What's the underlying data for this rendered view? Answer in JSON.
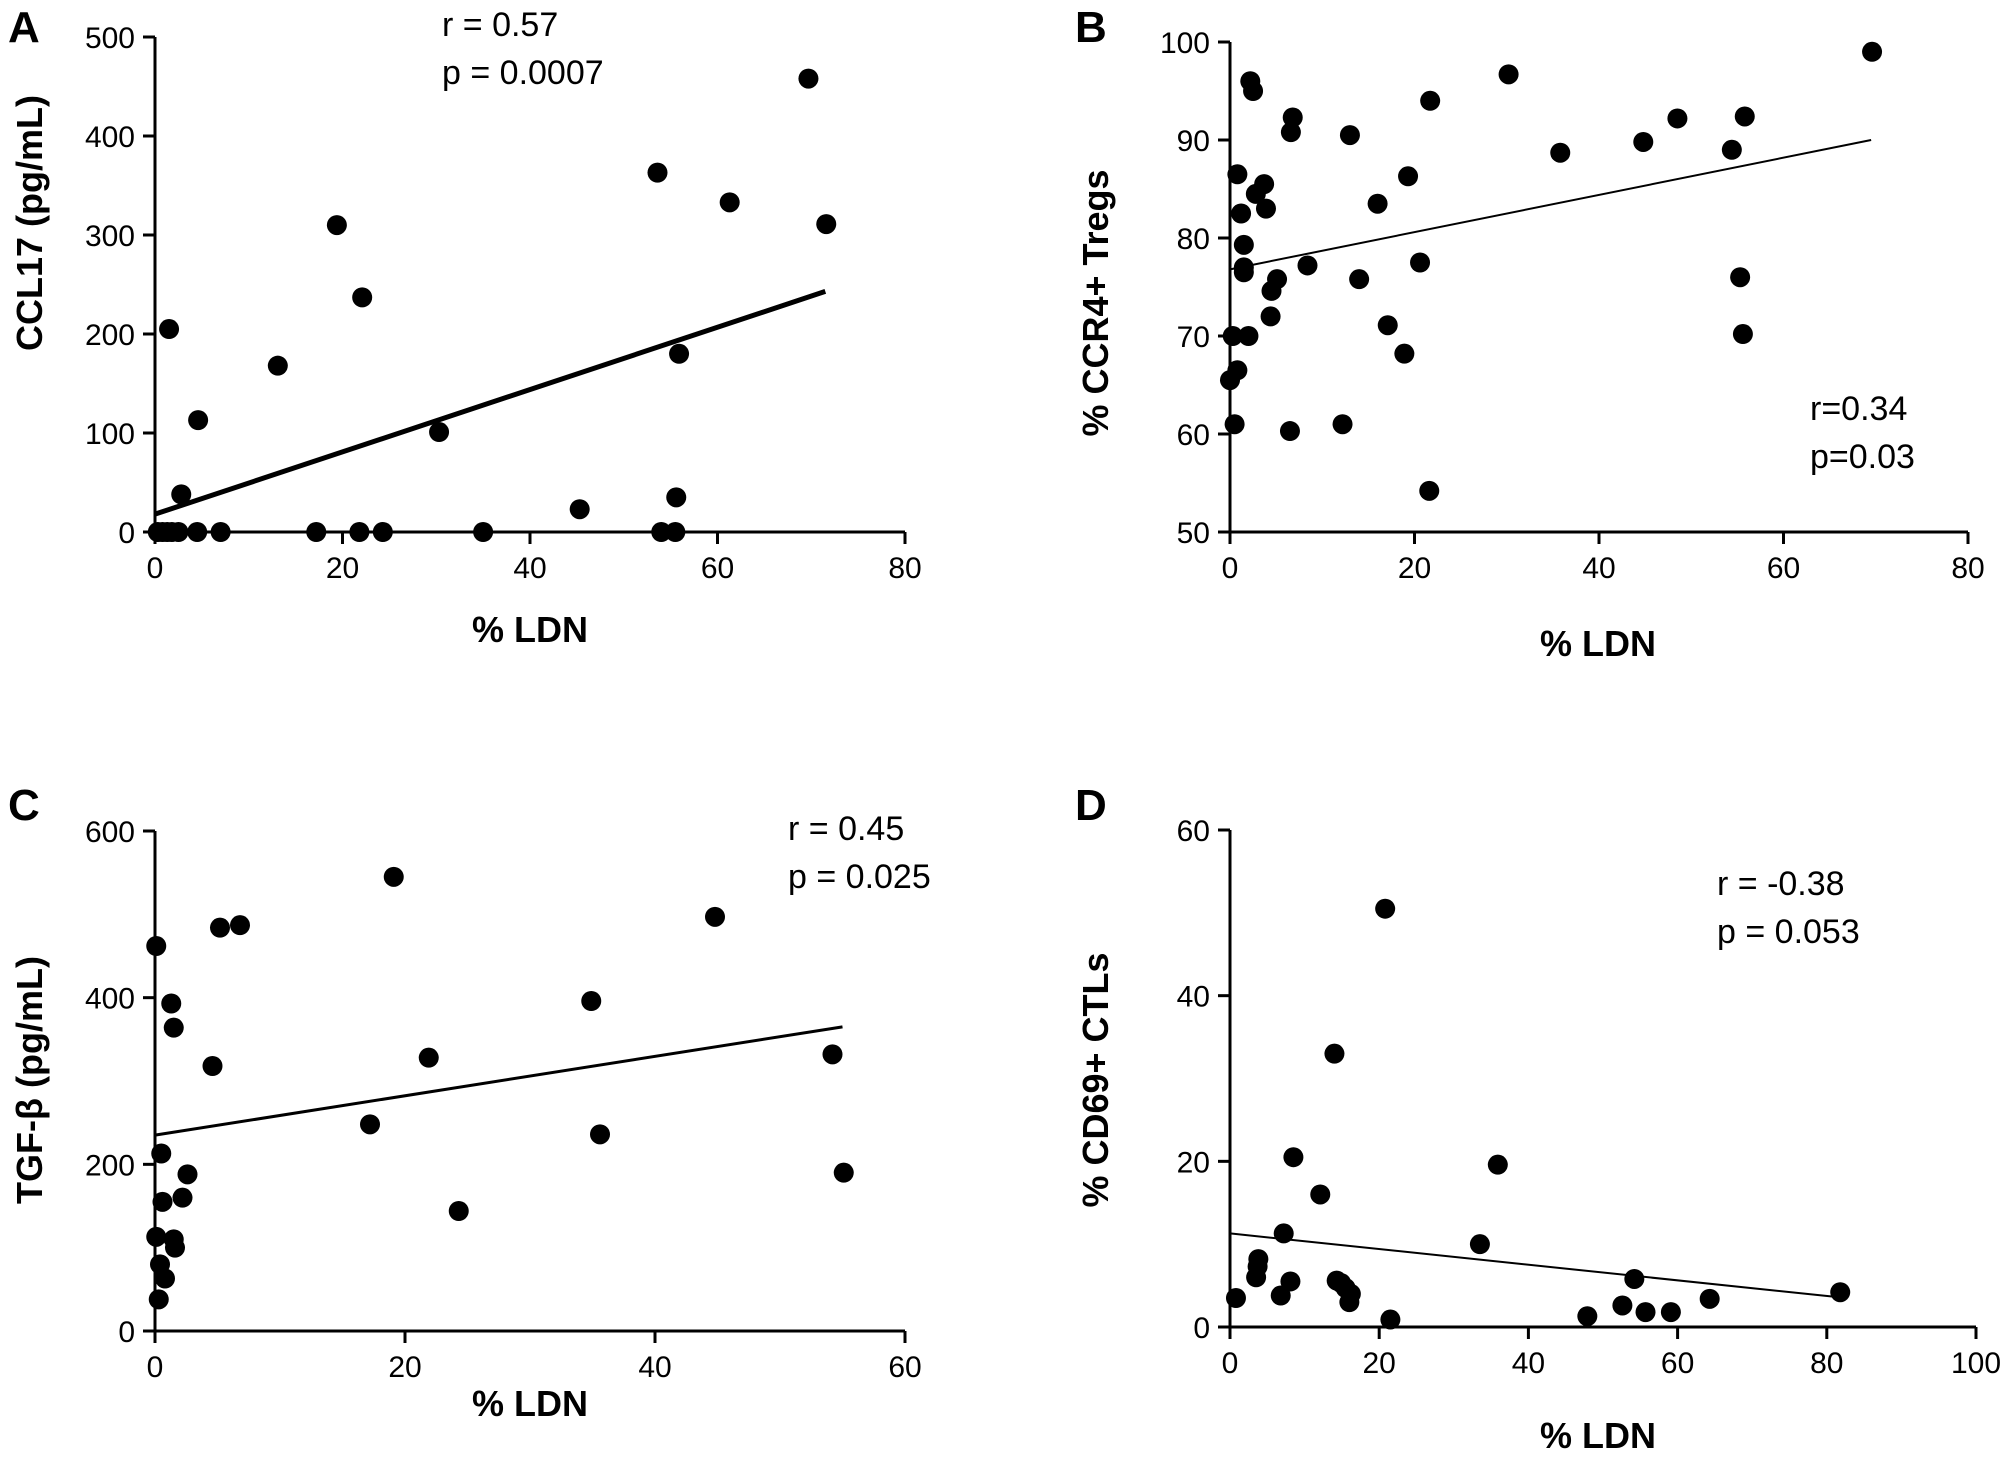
{
  "chart_data": [
    {
      "panel": "A",
      "type": "scatter",
      "xlabel": "% LDN",
      "ylabel": "CCL17 (pg/mL)",
      "xlim": [
        0,
        80
      ],
      "ylim": [
        0,
        500
      ],
      "xticks": [
        "0",
        "20",
        "40",
        "60",
        "80"
      ],
      "yticks": [
        "0",
        "100",
        "200",
        "300",
        "400",
        "500"
      ],
      "stats": [
        "r = 0.57",
        "p = 0.0007"
      ],
      "points": [
        [
          0.3,
          0
        ],
        [
          0.8,
          0
        ],
        [
          1.3,
          0
        ],
        [
          1.8,
          0
        ],
        [
          2.5,
          0
        ],
        [
          4.5,
          0
        ],
        [
          7,
          0
        ],
        [
          17.2,
          0
        ],
        [
          21.8,
          0
        ],
        [
          24.3,
          0
        ],
        [
          35,
          0
        ],
        [
          54,
          0
        ],
        [
          55.5,
          0
        ],
        [
          1.5,
          205
        ],
        [
          2.8,
          38
        ],
        [
          4.6,
          113
        ],
        [
          13.1,
          168
        ],
        [
          19.4,
          310
        ],
        [
          22.1,
          237
        ],
        [
          30.3,
          101
        ],
        [
          45.3,
          23
        ],
        [
          53.6,
          363
        ],
        [
          55.6,
          35
        ],
        [
          55.9,
          180
        ],
        [
          61.3,
          333
        ],
        [
          69.7,
          458
        ],
        [
          71.6,
          311
        ]
      ],
      "regression": [
        [
          0,
          18
        ],
        [
          71.5,
          243
        ]
      ]
    },
    {
      "panel": "B",
      "type": "scatter",
      "xlabel": "% LDN",
      "ylabel": "% CCR4+ Tregs",
      "xlim": [
        0,
        80
      ],
      "ylim": [
        50,
        100
      ],
      "xticks": [
        "0",
        "20",
        "40",
        "60",
        "80"
      ],
      "yticks": [
        "50",
        "60",
        "70",
        "80",
        "90",
        "100"
      ],
      "stats": [
        "r=0.34",
        "p=0.03"
      ],
      "points": [
        [
          0,
          65.5
        ],
        [
          0.3,
          70
        ],
        [
          0.5,
          61
        ],
        [
          0.8,
          66.5
        ],
        [
          0.8,
          86.5
        ],
        [
          1.2,
          82.5
        ],
        [
          1.5,
          79.3
        ],
        [
          1.5,
          77
        ],
        [
          1.5,
          76.5
        ],
        [
          2,
          70
        ],
        [
          2.2,
          96
        ],
        [
          2.5,
          95
        ],
        [
          2.8,
          84.5
        ],
        [
          3.7,
          85.5
        ],
        [
          3.9,
          83
        ],
        [
          4.4,
          72
        ],
        [
          4.5,
          74.6
        ],
        [
          5.1,
          75.8
        ],
        [
          6.5,
          60.3
        ],
        [
          6.6,
          90.8
        ],
        [
          6.8,
          92.3
        ],
        [
          8.4,
          77.2
        ],
        [
          12.2,
          61
        ],
        [
          13,
          90.5
        ],
        [
          14,
          75.8
        ],
        [
          16,
          83.5
        ],
        [
          17.1,
          71.1
        ],
        [
          18.9,
          68.2
        ],
        [
          19.3,
          86.3
        ],
        [
          20.6,
          77.5
        ],
        [
          21.6,
          54.2
        ],
        [
          21.7,
          94
        ],
        [
          30.2,
          96.7
        ],
        [
          35.8,
          88.7
        ],
        [
          44.8,
          89.8
        ],
        [
          48.5,
          92.2
        ],
        [
          54.4,
          89
        ],
        [
          55.3,
          76
        ],
        [
          55.6,
          70.2
        ],
        [
          55.8,
          92.4
        ],
        [
          69.6,
          99
        ]
      ],
      "regression": [
        [
          0,
          76.8
        ],
        [
          69.5,
          90
        ]
      ]
    },
    {
      "panel": "C",
      "type": "scatter",
      "xlabel": "% LDN",
      "ylabel": "TGF-β (pg/mL)",
      "xlim": [
        0,
        60
      ],
      "ylim": [
        0,
        600
      ],
      "xticks": [
        "0",
        "20",
        "40",
        "60"
      ],
      "yticks": [
        "0",
        "200",
        "400",
        "600"
      ],
      "stats": [
        "r = 0.45",
        "p = 0.025"
      ],
      "points": [
        [
          0.1,
          462
        ],
        [
          0.1,
          113
        ],
        [
          0.3,
          38
        ],
        [
          0.4,
          80
        ],
        [
          0.5,
          213
        ],
        [
          0.6,
          155
        ],
        [
          0.8,
          63
        ],
        [
          1.3,
          393
        ],
        [
          1.5,
          364
        ],
        [
          1.5,
          110
        ],
        [
          1.6,
          100
        ],
        [
          2.2,
          160
        ],
        [
          2.6,
          188
        ],
        [
          4.6,
          318
        ],
        [
          5.2,
          484
        ],
        [
          6.8,
          487
        ],
        [
          17.2,
          248
        ],
        [
          19.1,
          545
        ],
        [
          21.9,
          328
        ],
        [
          24.3,
          144
        ],
        [
          34.9,
          396
        ],
        [
          35.6,
          236
        ],
        [
          44.8,
          497
        ],
        [
          54.2,
          332
        ],
        [
          55.1,
          190
        ]
      ],
      "regression": [
        [
          0,
          235
        ],
        [
          55,
          365
        ]
      ]
    },
    {
      "panel": "D",
      "type": "scatter",
      "xlabel": "% LDN",
      "ylabel": "% CD69+ CTLs",
      "xlim": [
        0,
        100
      ],
      "ylim": [
        0,
        60
      ],
      "xticks": [
        "0",
        "20",
        "40",
        "60",
        "80",
        "100"
      ],
      "yticks": [
        "0",
        "20",
        "40",
        "60"
      ],
      "stats": [
        "r = -0.38",
        "p = 0.053"
      ],
      "points": [
        [
          0.8,
          3.5
        ],
        [
          3.5,
          6
        ],
        [
          3.7,
          7.3
        ],
        [
          3.8,
          8.2
        ],
        [
          6.8,
          3.8
        ],
        [
          7.2,
          11.3
        ],
        [
          8.1,
          5.5
        ],
        [
          8.5,
          20.5
        ],
        [
          12.1,
          16
        ],
        [
          14,
          33
        ],
        [
          14.3,
          5.6
        ],
        [
          14.9,
          5.3
        ],
        [
          15.5,
          4.7
        ],
        [
          16,
          3
        ],
        [
          16.2,
          4
        ],
        [
          20.8,
          50.5
        ],
        [
          21.5,
          0.9
        ],
        [
          33.5,
          10
        ],
        [
          35.9,
          19.6
        ],
        [
          47.9,
          1.3
        ],
        [
          52.6,
          2.6
        ],
        [
          54.2,
          5.8
        ],
        [
          55.7,
          1.8
        ],
        [
          59.1,
          1.8
        ],
        [
          64.3,
          3.4
        ],
        [
          81.8,
          4.2
        ]
      ],
      "regression": [
        [
          0,
          11.3
        ],
        [
          81.5,
          3.6
        ]
      ]
    }
  ]
}
